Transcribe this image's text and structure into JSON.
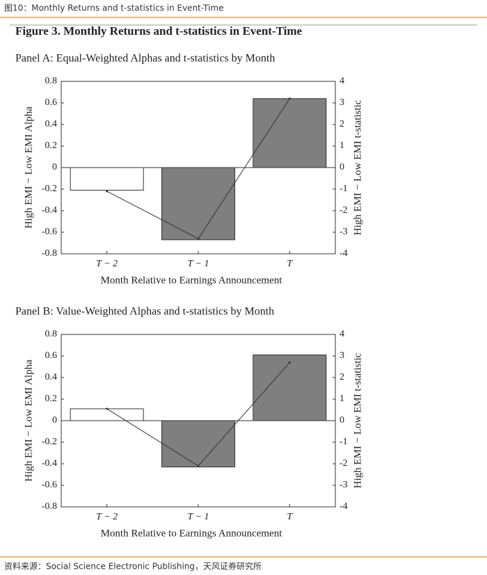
{
  "header": {
    "title": "图10：Monthly Returns and t-statistics in Event-Time"
  },
  "figure_title": "Figure 3. Monthly Returns and t-statistics in Event-Time",
  "chart_data": [
    {
      "type": "bar",
      "title": "Panel A: Equal-Weighted Alphas and t-statistics by Month",
      "categories": [
        "T − 2",
        "T − 1",
        "T"
      ],
      "series": [
        {
          "type": "bar",
          "colors": [
            "#ffffff",
            "#7f7f7f",
            "#7f7f7f"
          ],
          "values": [
            -0.21,
            -0.67,
            0.64
          ]
        },
        {
          "type": "line",
          "axis": "y2",
          "color": "#333333",
          "values": [
            -1.1,
            -3.3,
            3.2
          ]
        }
      ],
      "ylim": [
        -0.8,
        0.8
      ],
      "yticks": [
        0.8,
        0.6,
        0.4,
        0.2,
        0,
        -0.2,
        -0.4,
        -0.6,
        -0.8
      ],
      "y2lim": [
        -4,
        4
      ],
      "y2ticks": [
        4,
        3,
        2,
        1,
        0,
        -1,
        -2,
        -3,
        -4
      ],
      "xlabel": "Month Relative to Earnings Announcement",
      "ylabel": "High EMI − Low EMI Alpha",
      "y2label": "High EMI − Low EMI t-statistic"
    },
    {
      "type": "bar",
      "title": "Panel B: Value-Weighted Alphas and t-statistics by Month",
      "categories": [
        "T − 2",
        "T − 1",
        "T"
      ],
      "series": [
        {
          "type": "bar",
          "colors": [
            "#ffffff",
            "#7f7f7f",
            "#7f7f7f"
          ],
          "values": [
            0.11,
            -0.43,
            0.61
          ]
        },
        {
          "type": "line",
          "axis": "y2",
          "color": "#333333",
          "values": [
            0.55,
            -2.1,
            2.7
          ]
        }
      ],
      "ylim": [
        -0.8,
        0.8
      ],
      "yticks": [
        0.8,
        0.6,
        0.4,
        0.2,
        0,
        -0.2,
        -0.4,
        -0.6,
        -0.8
      ],
      "y2lim": [
        -4,
        4
      ],
      "y2ticks": [
        4,
        3,
        2,
        1,
        0,
        -1,
        -2,
        -3,
        -4
      ],
      "xlabel": "Month Relative to Earnings Announcement",
      "ylabel": "High EMI − Low EMI Alpha",
      "y2label": "High EMI − Low EMI t-statistic"
    }
  ],
  "source": "资料来源：Social Science Electronic Publishing，天风证券研究所"
}
